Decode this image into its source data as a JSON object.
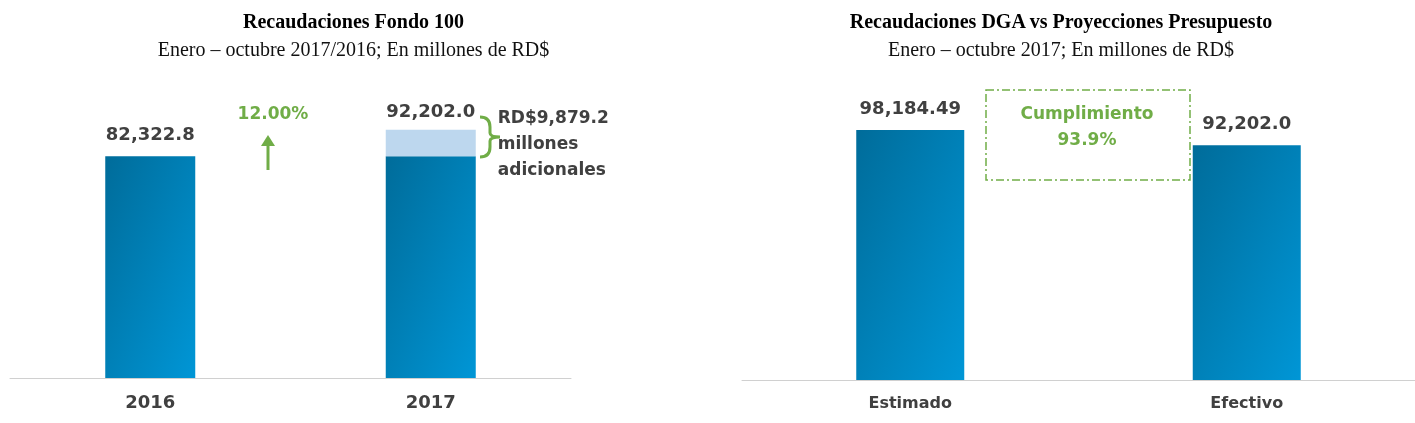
{
  "chart_data": [
    {
      "type": "bar",
      "title": "Recaudaciones Fondo 100",
      "subtitle": "Enero – octubre 2017/2016; En millones de RD$",
      "categories": [
        "2016",
        "2017"
      ],
      "stacked": true,
      "series": [
        {
          "color": "#0096d6",
          "values": [
            82322.8,
            82322.8
          ],
          "value_labels": [
            "82,322.8",
            null
          ]
        },
        {
          "color": "#bdd7ee",
          "values": [
            null,
            9879.2
          ],
          "value_labels": [
            null,
            "RD$9,879.2 millones adicionales"
          ]
        }
      ],
      "totals": [
        null,
        "92,202.0"
      ],
      "annotations": [
        "12.00%"
      ]
    },
    {
      "type": "bar",
      "title": "Recaudaciones DGA vs Proyecciones Presupuesto",
      "subtitle": "Enero – octubre 2017; En millones de RD$",
      "categories": [
        "Estimado",
        "Efectivo"
      ],
      "values": [
        98184.49,
        92202.0
      ],
      "color": "#0096d6",
      "value_labels": [
        "98,184.49",
        "92,202.0"
      ],
      "annotations": [
        "Cumplimiento 93.9%"
      ]
    }
  ]
}
